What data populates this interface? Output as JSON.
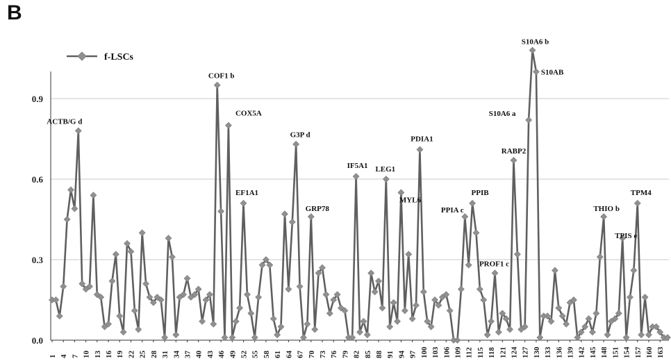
{
  "panel_label": "B",
  "chart_data": {
    "type": "line",
    "title": "",
    "xlabel": "",
    "ylabel": "",
    "xlim": [
      1,
      165
    ],
    "ylim": [
      0,
      1.0
    ],
    "grid": true,
    "legend_position": "top-left",
    "colors": {
      "series": "#5f5f5f",
      "marker": "#909090",
      "grid": "#c8c8c8",
      "axis": "#333333"
    },
    "y_ticks": [
      "0.0",
      "0.3",
      "0.6",
      "0.9"
    ],
    "y_tick_values": [
      0,
      0.3,
      0.6,
      0.9
    ],
    "x_tick_labels": [
      "1",
      "4",
      "7",
      "10",
      "13",
      "16",
      "19",
      "22",
      "25",
      "28",
      "31",
      "34",
      "37",
      "40",
      "43",
      "46",
      "49",
      "52",
      "55",
      "58",
      "61",
      "64",
      "67",
      "70",
      "73",
      "76",
      "79",
      "82",
      "85",
      "88",
      "91",
      "94",
      "97",
      "100",
      "103",
      "106",
      "109",
      "112",
      "115",
      "118",
      "121",
      "124",
      "127",
      "130",
      "133",
      "136",
      "139",
      "142",
      "145",
      "148",
      "151",
      "154",
      "157",
      "160",
      "163"
    ],
    "series": [
      {
        "name": "f-LSCs",
        "x": [
          1,
          2,
          3,
          4,
          5,
          6,
          7,
          8,
          9,
          10,
          11,
          12,
          13,
          14,
          15,
          16,
          17,
          18,
          19,
          20,
          21,
          22,
          23,
          24,
          25,
          26,
          27,
          28,
          29,
          30,
          31,
          32,
          33,
          34,
          35,
          36,
          37,
          38,
          39,
          40,
          41,
          42,
          43,
          44,
          45,
          46,
          47,
          48,
          49,
          50,
          51,
          52,
          53,
          54,
          55,
          56,
          57,
          58,
          59,
          60,
          61,
          62,
          63,
          64,
          65,
          66,
          67,
          68,
          69,
          70,
          71,
          72,
          73,
          74,
          75,
          76,
          77,
          78,
          79,
          80,
          81,
          82,
          83,
          84,
          85,
          86,
          87,
          88,
          89,
          90,
          91,
          92,
          93,
          94,
          95,
          96,
          97,
          98,
          99,
          100,
          101,
          102,
          103,
          104,
          105,
          106,
          107,
          108,
          109,
          110,
          111,
          112,
          113,
          114,
          115,
          116,
          117,
          118,
          119,
          120,
          121,
          122,
          123,
          124,
          125,
          126,
          127,
          128,
          129,
          130,
          131,
          132,
          133,
          134,
          135,
          136,
          137,
          138,
          139,
          140,
          141,
          142,
          143,
          144,
          145,
          146,
          147,
          148,
          149,
          150,
          151,
          152,
          153,
          154,
          155,
          156,
          157,
          158,
          159,
          160,
          161,
          162,
          163,
          164,
          165
        ],
        "values": [
          0.15,
          0.15,
          0.09,
          0.2,
          0.45,
          0.56,
          0.49,
          0.78,
          0.21,
          0.19,
          0.2,
          0.54,
          0.17,
          0.16,
          0.05,
          0.06,
          0.22,
          0.32,
          0.09,
          0.03,
          0.36,
          0.33,
          0.11,
          0.04,
          0.4,
          0.21,
          0.16,
          0.14,
          0.16,
          0.15,
          0.01,
          0.38,
          0.31,
          0.02,
          0.16,
          0.17,
          0.23,
          0.16,
          0.17,
          0.19,
          0.07,
          0.15,
          0.17,
          0.06,
          0.95,
          0.48,
          0.01,
          0.8,
          0.01,
          0.07,
          0.12,
          0.51,
          0.17,
          0.1,
          0.01,
          0.16,
          0.28,
          0.3,
          0.28,
          0.08,
          0.02,
          0.05,
          0.47,
          0.19,
          0.44,
          0.73,
          0.2,
          0.01,
          0.06,
          0.46,
          0.04,
          0.25,
          0.27,
          0.17,
          0.1,
          0.15,
          0.17,
          0.12,
          0.11,
          0.01,
          0.01,
          0.61,
          0.03,
          0.07,
          0.02,
          0.25,
          0.18,
          0.22,
          0.12,
          0.6,
          0.05,
          0.14,
          0.07,
          0.55,
          0.11,
          0.32,
          0.08,
          0.13,
          0.71,
          0.18,
          0.07,
          0.05,
          0.15,
          0.13,
          0.16,
          0.17,
          0.11,
          0.0,
          0.0,
          0.19,
          0.46,
          0.28,
          0.51,
          0.4,
          0.19,
          0.15,
          0.02,
          0.07,
          0.25,
          0.03,
          0.1,
          0.08,
          0.04,
          0.67,
          0.32,
          0.04,
          0.05,
          0.82,
          1.08,
          1.0,
          0.01,
          0.09,
          0.09,
          0.07,
          0.26,
          0.12,
          0.09,
          0.06,
          0.14,
          0.15,
          0.01,
          0.03,
          0.05,
          0.08,
          0.03,
          0.1,
          0.31,
          0.46,
          0.02,
          0.07,
          0.08,
          0.1,
          0.38,
          0.01,
          0.16,
          0.26,
          0.51,
          0.02,
          0.16,
          0.02,
          0.05,
          0.05,
          0.03,
          0.01,
          0.01
        ]
      }
    ],
    "annotations": [
      {
        "text": "ACTB/G d",
        "x": 8,
        "y": 0.78
      },
      {
        "text": "COF1 b",
        "x": 45,
        "y": 0.95
      },
      {
        "text": "COX5A",
        "x": 48,
        "y": 0.8
      },
      {
        "text": "EF1A1",
        "x": 52,
        "y": 0.51
      },
      {
        "text": "G3P d",
        "x": 66,
        "y": 0.73
      },
      {
        "text": "GRP78",
        "x": 70,
        "y": 0.46
      },
      {
        "text": "IF5A1",
        "x": 82,
        "y": 0.61
      },
      {
        "text": "LEG1",
        "x": 90,
        "y": 0.6
      },
      {
        "text": "MYL6",
        "x": 94,
        "y": 0.55
      },
      {
        "text": "PDIA1",
        "x": 99,
        "y": 0.71
      },
      {
        "text": "PPIA c",
        "x": 111,
        "y": 0.46
      },
      {
        "text": "PPIB",
        "x": 113,
        "y": 0.51
      },
      {
        "text": "PROF1 c",
        "x": 119,
        "y": 0.25
      },
      {
        "text": "RABP2",
        "x": 124,
        "y": 0.67
      },
      {
        "text": "S10A6 a",
        "x": 128,
        "y": 0.82
      },
      {
        "text": "S10A6 b",
        "x": 129,
        "y": 1.08
      },
      {
        "text": "S10AB",
        "x": 130,
        "y": 1.0
      },
      {
        "text": "THIO b",
        "x": 148,
        "y": 0.46
      },
      {
        "text": "TPIS e",
        "x": 153,
        "y": 0.38
      },
      {
        "text": "TPM4",
        "x": 157,
        "y": 0.51
      }
    ]
  }
}
